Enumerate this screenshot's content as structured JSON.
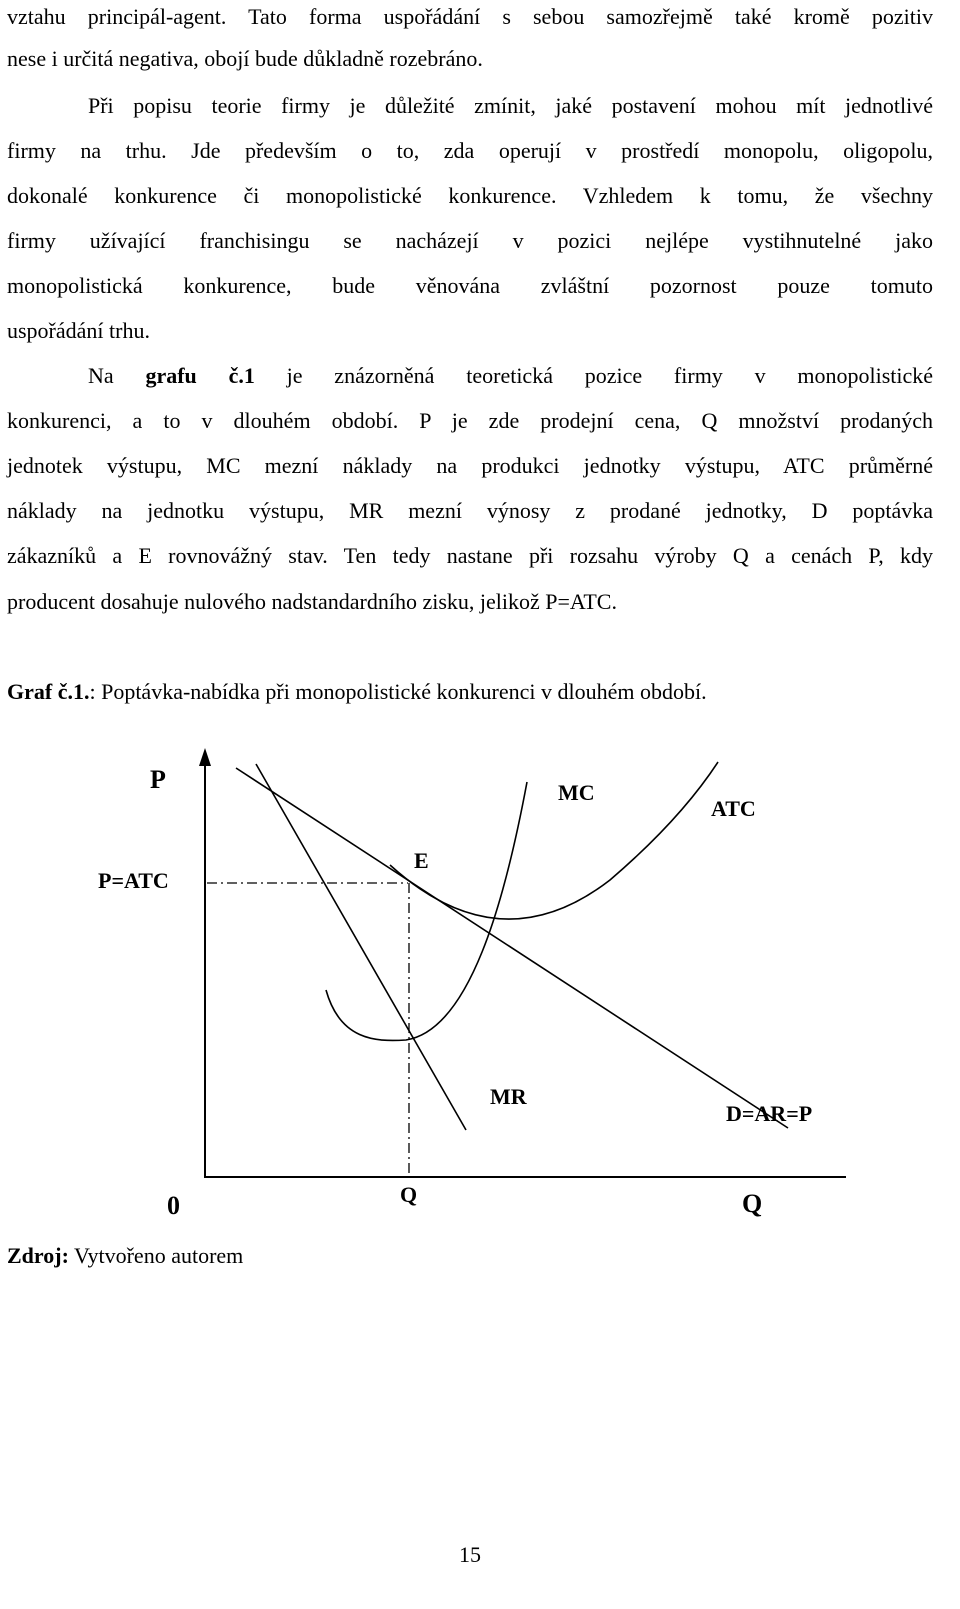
{
  "paragraphs": {
    "l1": "vztahu principál-agent. Tato forma uspořádání s sebou samozřejmě také kromě pozitiv",
    "l2": "nese i určitá negativa, obojí bude důkladně rozebráno.",
    "l3": "Při popisu teorie firmy je důležité zmínit, jaké postavení mohou mít jednotlivé",
    "l4": "firmy na trhu. Jde především o to, zda operují v prostředí monopolu, oligopolu,",
    "l5": "dokonalé konkurence či monopolistické konkurence. Vzhledem k tomu, že všechny",
    "l6": "firmy užívající franchisingu se nacházejí v pozici nejlépe vystihnutelné jako",
    "l7": "monopolistická konkurence, bude věnována zvláštní pozornost pouze tomuto",
    "l8": "uspořádání trhu.",
    "l9_pre": "Na",
    "l9_bold": "grafu č.1",
    "l9_post": "je znázorněná teoretická pozice firmy v monopolistické",
    "l10": "konkurenci, a to v dlouhém období. P je zde prodejní cena, Q množství prodaných",
    "l11": "jednotek výstupu, MC mezní náklady na produkci jednotky výstupu, ATC průměrné",
    "l12": "náklady na jednotku výstupu, MR mezní výnosy z prodané jednotky, D poptávka",
    "l13": "zákazníků a E rovnovážný stav. Ten tedy nastane při rozsahu výroby Q a cenách P, kdy",
    "l14": "producent dosahuje nulového nadstandardního zisku, jelikož P=ATC."
  },
  "caption": {
    "bold": "Graf č.1.",
    "rest": ": Poptávka-nabídka při monopolistické konkurenci v dlouhém období."
  },
  "figure": {
    "label_p": "P",
    "label_mc": "MC",
    "label_atc": "ATC",
    "label_p_atc": "P=ATC",
    "label_e": "E",
    "label_mr": "MR",
    "label_d": "D=AR=P",
    "label_origin": "0",
    "label_q_point": "Q",
    "label_q_axis": "Q"
  },
  "source": {
    "bold": "Zdroj:",
    "rest": " Vytvořeno autorem"
  },
  "page_number": "15"
}
